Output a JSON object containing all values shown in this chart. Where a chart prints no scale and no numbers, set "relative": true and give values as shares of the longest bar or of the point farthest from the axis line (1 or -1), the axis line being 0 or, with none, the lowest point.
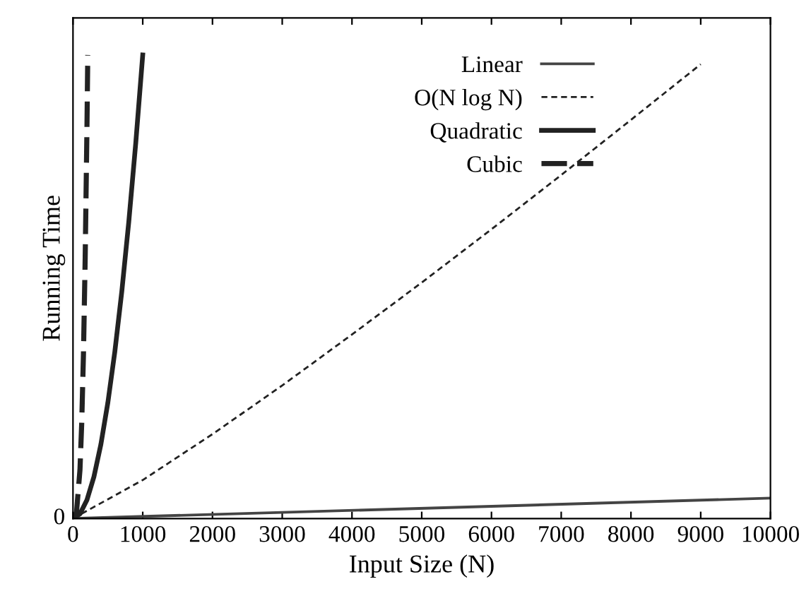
{
  "chart_data": {
    "type": "line",
    "relative": true,
    "xlabel": "Input Size (N)",
    "ylabel": "Running Time",
    "xlim": [
      0,
      10000
    ],
    "xticks": [
      0,
      1000,
      2000,
      3000,
      4000,
      5000,
      6000,
      7000,
      8000,
      9000,
      10000
    ],
    "annotations": [
      {
        "text": "0",
        "x": 0,
        "y": 0
      }
    ],
    "legend": "top right",
    "grid": false,
    "series": [
      {
        "name": "Linear",
        "color": "#444444",
        "line_style": "solid",
        "x": [
          0,
          10000
        ],
        "values": [
          0,
          0.044
        ]
      },
      {
        "name": "O(N log N)",
        "color": "#222222",
        "line_style": "dotted",
        "x": [
          0,
          1000,
          2000,
          3000,
          4000,
          5000,
          6000,
          7000,
          8000,
          9000
        ],
        "values": [
          0,
          0.083,
          0.182,
          0.287,
          0.397,
          0.509,
          0.624,
          0.741,
          0.86,
          0.98
        ]
      },
      {
        "name": "Quadratic",
        "color": "#222222",
        "line_style": "solid",
        "x": [
          0,
          100,
          200,
          300,
          400,
          500,
          600,
          700,
          800,
          900,
          1000
        ],
        "values": [
          0,
          0.01,
          0.04,
          0.09,
          0.16,
          0.25,
          0.36,
          0.49,
          0.64,
          0.81,
          1.0
        ]
      },
      {
        "name": "Cubic",
        "color": "#222222",
        "line_style": "dashed",
        "x": [
          0,
          50,
          100,
          125,
          150,
          175,
          200,
          212
        ],
        "values": [
          0,
          0.013,
          0.105,
          0.205,
          0.354,
          0.563,
          0.84,
          1.0
        ]
      }
    ]
  }
}
